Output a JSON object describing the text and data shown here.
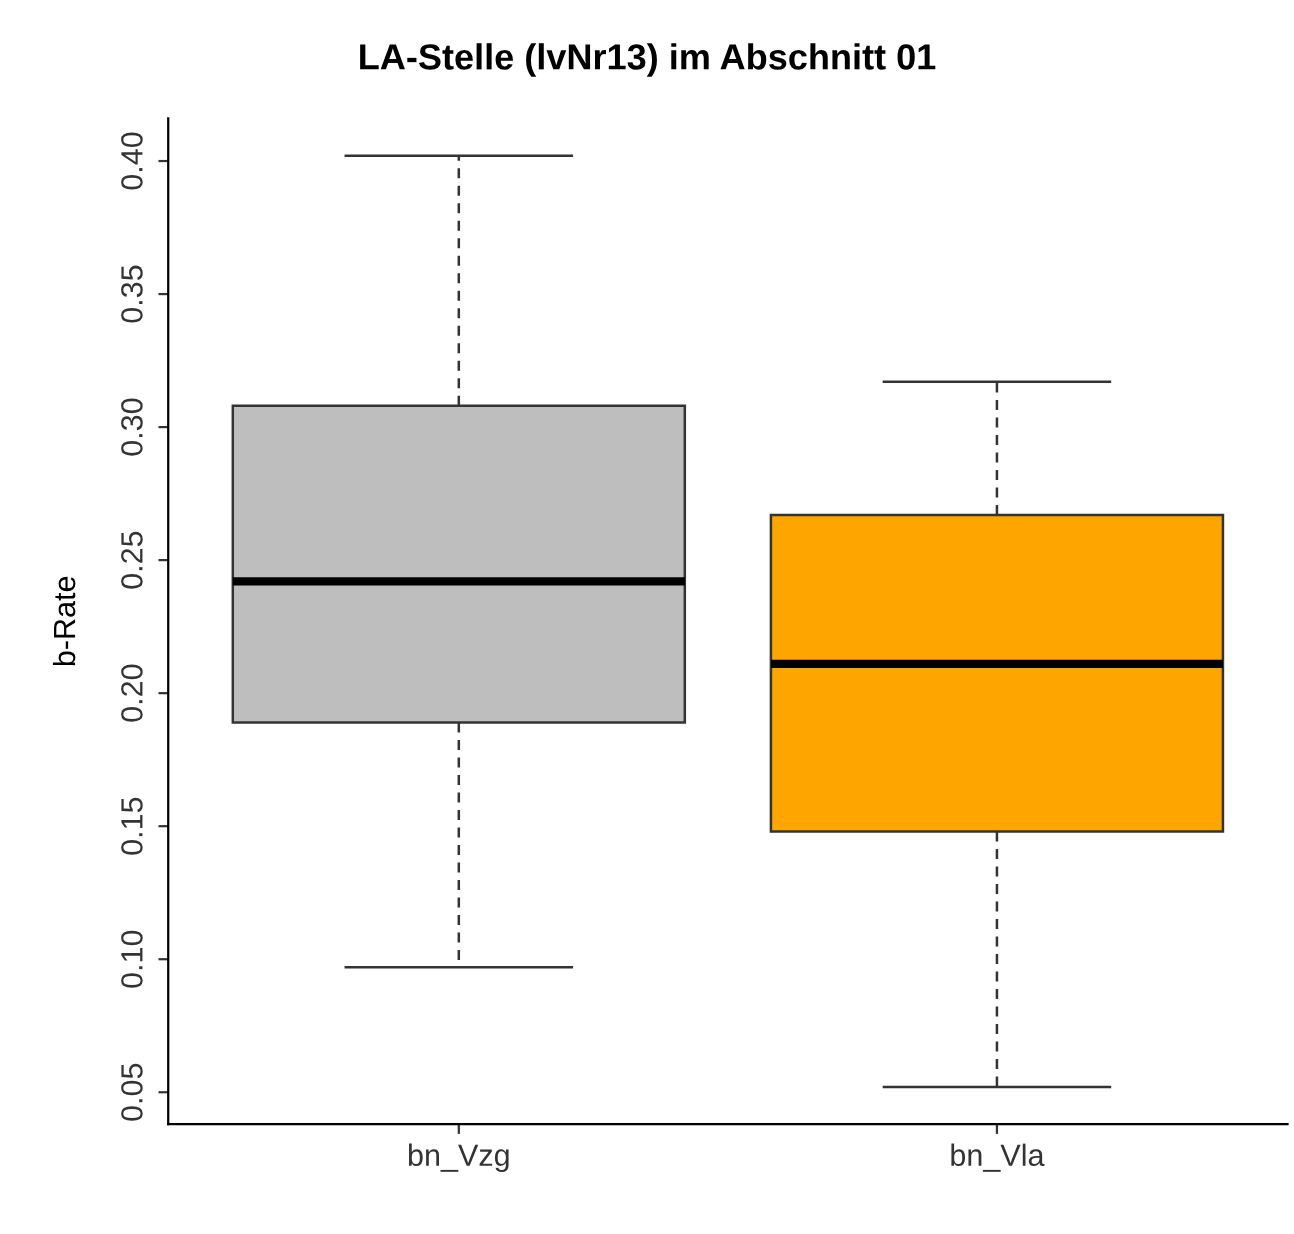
{
  "chart_data": {
    "type": "box",
    "title": "LA-Stelle (lvNr13) im Abschnitt 01",
    "ylabel": "b-Rate",
    "categories": [
      "bn_Vzg",
      "bn_Vla"
    ],
    "colors": [
      "#bebebe",
      "#ffa500"
    ],
    "boxes": [
      {
        "low": 0.097,
        "q1": 0.189,
        "median": 0.242,
        "q3": 0.308,
        "high": 0.402
      },
      {
        "low": 0.052,
        "q1": 0.148,
        "median": 0.211,
        "q3": 0.267,
        "high": 0.317
      }
    ],
    "ylim": [
      0.038,
      0.416
    ],
    "yticks": [
      {
        "value": 0.05,
        "label": "0.05"
      },
      {
        "value": 0.1,
        "label": "0.10"
      },
      {
        "value": 0.15,
        "label": "0.15"
      },
      {
        "value": 0.2,
        "label": "0.20"
      },
      {
        "value": 0.25,
        "label": "0.25"
      },
      {
        "value": 0.3,
        "label": "0.30"
      },
      {
        "value": 0.35,
        "label": "0.35"
      },
      {
        "value": 0.4,
        "label": "0.40"
      }
    ],
    "grid": false
  }
}
